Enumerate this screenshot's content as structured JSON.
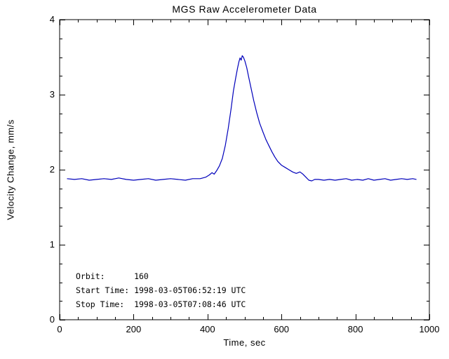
{
  "page": {
    "title": "MGS Raw Accelerometer Data"
  },
  "chart_data": {
    "type": "line",
    "title": "MGS Raw Accelerometer Data",
    "xlabel": "Time, sec",
    "ylabel": "Velocity Change, mm/s",
    "xlim": [
      0,
      1000
    ],
    "ylim": [
      0,
      4
    ],
    "xticks": [
      0,
      200,
      400,
      600,
      800,
      1000
    ],
    "yticks": [
      0,
      1,
      2,
      3,
      4
    ],
    "x_minor_interval": 50,
    "y_minor_interval": 0.25,
    "grid": false,
    "legend": false,
    "line_color": "#0000bb",
    "axis_color": "#000000",
    "background_color": "#ffffff",
    "series": [
      {
        "name": "velocity-change",
        "x": [
          20,
          40,
          60,
          80,
          100,
          120,
          140,
          160,
          180,
          200,
          220,
          240,
          260,
          280,
          300,
          320,
          340,
          360,
          380,
          395,
          405,
          412,
          418,
          425,
          432,
          440,
          448,
          456,
          464,
          470,
          476,
          481,
          485,
          488,
          491,
          494,
          497,
          501,
          506,
          512,
          518,
          525,
          533,
          541,
          550,
          558,
          566,
          574,
          582,
          590,
          600,
          610,
          620,
          630,
          640,
          650,
          658,
          666,
          674,
          682,
          690,
          700,
          715,
          730,
          745,
          760,
          775,
          790,
          805,
          820,
          835,
          850,
          865,
          880,
          895,
          910,
          925,
          940,
          955,
          965
        ],
        "y": [
          1.88,
          1.87,
          1.88,
          1.86,
          1.87,
          1.88,
          1.87,
          1.89,
          1.87,
          1.86,
          1.87,
          1.88,
          1.86,
          1.87,
          1.88,
          1.87,
          1.86,
          1.88,
          1.88,
          1.9,
          1.93,
          1.96,
          1.94,
          1.99,
          2.05,
          2.15,
          2.32,
          2.55,
          2.82,
          3.05,
          3.22,
          3.35,
          3.44,
          3.49,
          3.46,
          3.52,
          3.5,
          3.45,
          3.36,
          3.22,
          3.08,
          2.92,
          2.76,
          2.62,
          2.5,
          2.4,
          2.32,
          2.24,
          2.17,
          2.11,
          2.06,
          2.03,
          2.0,
          1.97,
          1.95,
          1.97,
          1.94,
          1.9,
          1.86,
          1.85,
          1.87,
          1.87,
          1.86,
          1.87,
          1.86,
          1.87,
          1.88,
          1.86,
          1.87,
          1.86,
          1.88,
          1.86,
          1.87,
          1.88,
          1.86,
          1.87,
          1.88,
          1.87,
          1.88,
          1.87
        ]
      }
    ],
    "annotations": {
      "orbit_line": "Orbit:      160",
      "start_line": "Start Time: 1998-03-05T06:52:19 UTC",
      "stop_line": "Stop Time:  1998-03-05T07:08:46 UTC"
    }
  }
}
